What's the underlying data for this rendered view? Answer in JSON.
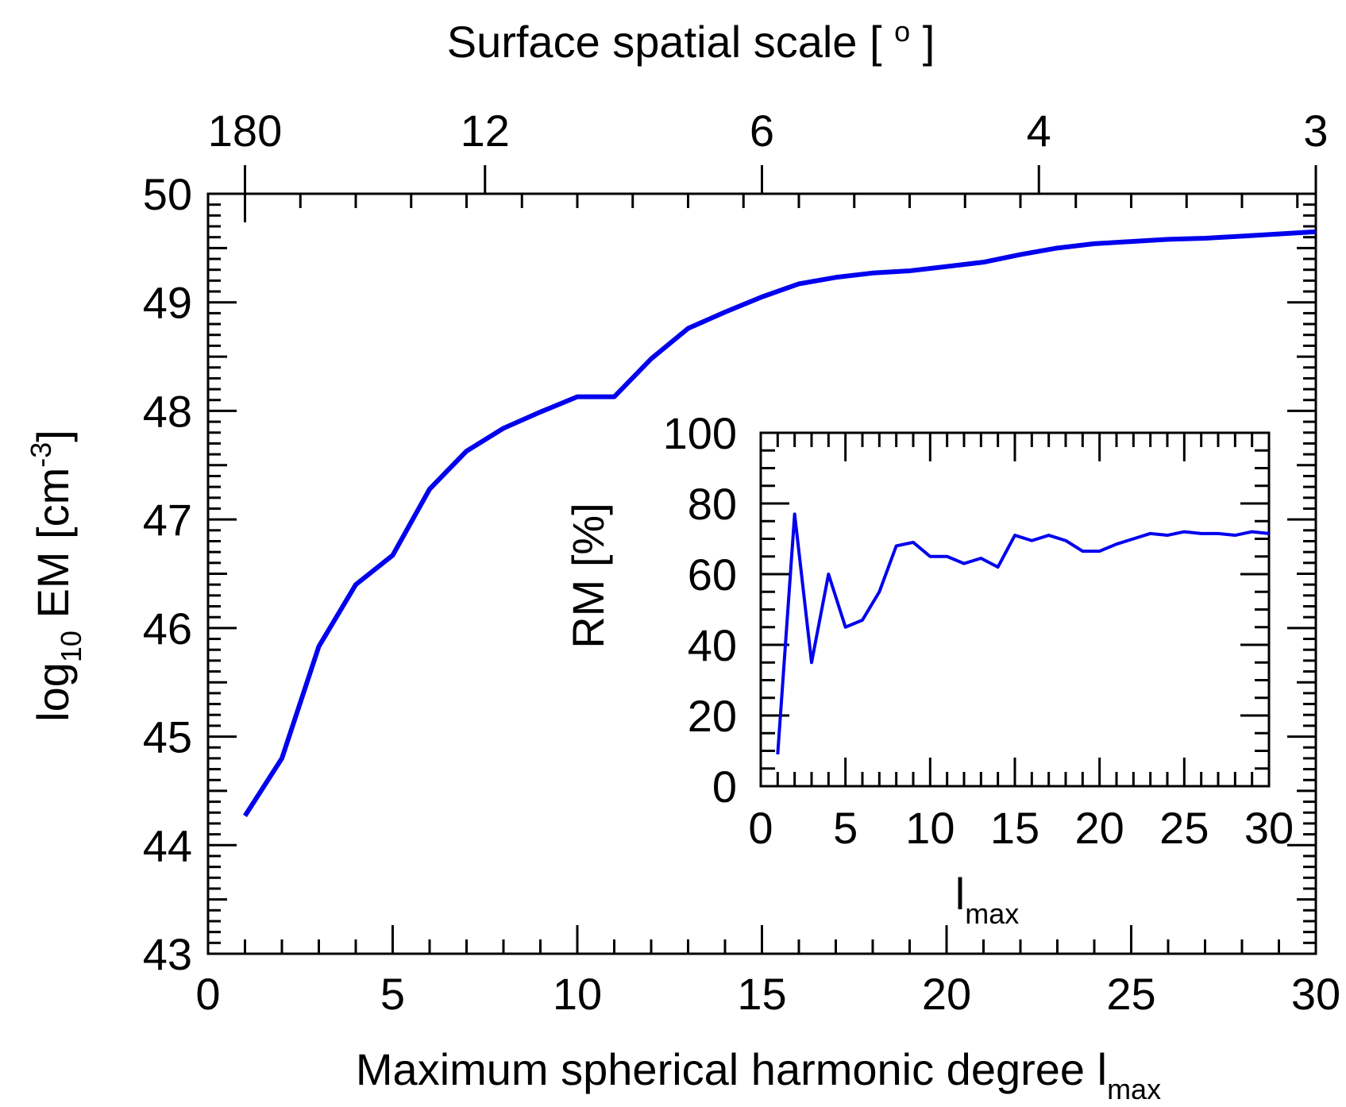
{
  "chart_data": [
    {
      "type": "line",
      "panel": "main",
      "xlabel": "Maximum spherical harmonic degree l",
      "xlabel_sub": "max",
      "ylabel_pre": "log",
      "ylabel_sub": "10",
      "ylabel_mid": " EM [cm",
      "ylabel_sup": "-3",
      "ylabel_post": "]",
      "top_axis_label": "Surface spatial scale [ ",
      "top_axis_label_sup": "o",
      "top_axis_label_post": " ]",
      "xlim": [
        0,
        30
      ],
      "ylim": [
        43,
        50
      ],
      "x_ticks": [
        "0",
        "5",
        "10",
        "15",
        "20",
        "25",
        "30"
      ],
      "y_ticks": [
        "43",
        "44",
        "45",
        "46",
        "47",
        "48",
        "49",
        "50"
      ],
      "top_ticks": [
        {
          "lmax": 1,
          "label": "180"
        },
        {
          "lmax": 7.5,
          "label": "12"
        },
        {
          "lmax": 15,
          "label": "6"
        },
        {
          "lmax": 22.5,
          "label": "4"
        },
        {
          "lmax": 30,
          "label": "3"
        }
      ],
      "line_color": "#0000ee",
      "series": [
        {
          "name": "log10 EM",
          "x": [
            1,
            2,
            3,
            4,
            5,
            6,
            7,
            8,
            9,
            10,
            11,
            12,
            13,
            14,
            15,
            16,
            17,
            18,
            19,
            20,
            21,
            22,
            23,
            24,
            25,
            26,
            27,
            28,
            29,
            30
          ],
          "y": [
            44.27,
            44.8,
            45.83,
            46.4,
            46.67,
            47.28,
            47.63,
            47.84,
            47.99,
            48.13,
            48.13,
            48.48,
            48.76,
            48.91,
            49.05,
            49.17,
            49.23,
            49.27,
            49.29,
            49.33,
            49.37,
            49.44,
            49.5,
            49.54,
            49.56,
            49.58,
            49.59,
            49.61,
            49.63,
            49.65
          ]
        }
      ]
    },
    {
      "type": "line",
      "panel": "inset",
      "xlabel": "l",
      "xlabel_sub": "max",
      "ylabel": "RM [%]",
      "xlim": [
        0,
        30
      ],
      "ylim": [
        0,
        100
      ],
      "x_ticks": [
        "0",
        "5",
        "10",
        "15",
        "20",
        "25",
        "30"
      ],
      "y_ticks": [
        "0",
        "20",
        "40",
        "60",
        "80",
        "100"
      ],
      "line_color": "#0000ee",
      "series": [
        {
          "name": "RM",
          "x": [
            1,
            2,
            3,
            4,
            5,
            6,
            7,
            8,
            9,
            10,
            11,
            12,
            13,
            14,
            15,
            16,
            17,
            18,
            19,
            20,
            21,
            22,
            23,
            24,
            25,
            26,
            27,
            28,
            29,
            30
          ],
          "y": [
            9,
            77,
            35,
            60,
            45,
            47,
            55,
            68,
            69,
            65,
            65,
            63,
            64.5,
            62,
            71,
            69.5,
            71,
            69.5,
            66.5,
            66.5,
            68.5,
            70,
            71.5,
            71,
            72,
            71.5,
            71.5,
            71,
            72,
            71.5
          ]
        }
      ]
    }
  ]
}
